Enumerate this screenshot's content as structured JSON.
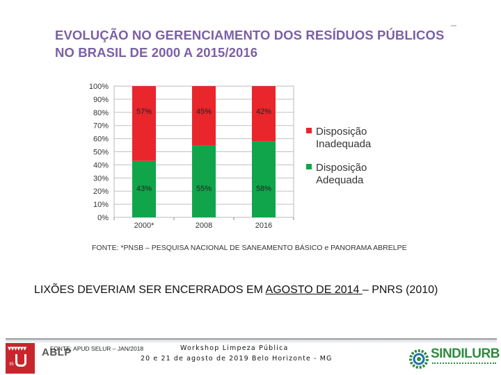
{
  "slide": {
    "title_line1": "EVOLUÇÃO NO GERENCIAMENTO DOS RESÍDUOS PÚBLICOS",
    "title_line2": "NO BRASIL DE 2000 A 2015/2016",
    "source": "FONTE: *PNSB – PESQUISA NACIONAL DE SANEAMENTO BÁSICO e PANORAMA ABRELPE",
    "note_prefix": "LIXÕES DEVERIAM SER ENCERRADOS EM ",
    "note_underlined": "AGOSTO DE 2014 ",
    "note_suffix": "– PNRS (2010)"
  },
  "footer": {
    "source": "FONTE: APUD SELUR – JAN/2018",
    "event_name": "Workshop Limpeza Pública",
    "event_date": "20 e 21 de agosto de 2019 Belo Horizonte - MG",
    "left_logo_text": "ABLP",
    "right_logo_text": "SINDILURB",
    "left_logo_icon": "abelp-hand-logo",
    "right_logo_icon": "sindilurb-gear-logo"
  },
  "colors": {
    "title": "#7b5fa6",
    "inadequada": "#e8262b",
    "adequada": "#10a54a",
    "grid": "#c0c0c0"
  },
  "chart_data": {
    "type": "bar",
    "stacked": true,
    "categories": [
      "2000*",
      "2008",
      "2016"
    ],
    "series": [
      {
        "name": "Disposição Adequada",
        "values": [
          43,
          55,
          58
        ],
        "labels": [
          "43%",
          "55%",
          "58%"
        ]
      },
      {
        "name": "Disposição Inadequada",
        "values": [
          57,
          45,
          42
        ],
        "labels": [
          "57%",
          "45%",
          "42%"
        ]
      }
    ],
    "legend": [
      {
        "line1": "Disposição",
        "line2": "Inadequada",
        "series": 1
      },
      {
        "line1": "Disposição",
        "line2": "Adequada",
        "series": 0
      }
    ],
    "yticks": [
      "0%",
      "10%",
      "20%",
      "30%",
      "40%",
      "50%",
      "60%",
      "70%",
      "80%",
      "90%",
      "100%"
    ],
    "ylim": [
      0,
      100
    ],
    "legend_position": "right",
    "grid": true
  }
}
